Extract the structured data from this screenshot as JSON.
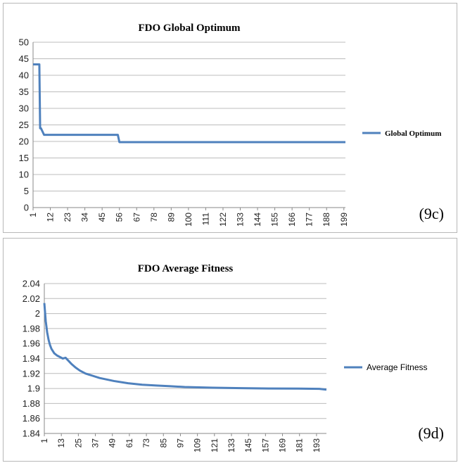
{
  "chart_data": [
    {
      "type": "line",
      "panel_label": "(9c)",
      "title": "FDO Global Optimum",
      "xlabel": "",
      "ylabel": "",
      "x_tick_labels": [
        "1",
        "12",
        "23",
        "34",
        "45",
        "56",
        "67",
        "78",
        "89",
        "100",
        "111",
        "122",
        "133",
        "144",
        "155",
        "166",
        "177",
        "188",
        "199"
      ],
      "xlim": [
        1,
        200
      ],
      "ylim": [
        0,
        50
      ],
      "y_ticks": [
        0,
        5,
        10,
        15,
        20,
        25,
        30,
        35,
        40,
        45,
        50
      ],
      "y_tick_labels": [
        "0",
        "5",
        "10",
        "15",
        "20",
        "25",
        "30",
        "35",
        "40",
        "45",
        "50"
      ],
      "grid": true,
      "legend_position": "right",
      "series": [
        {
          "name": "Global Optimum",
          "color": "#4f81bd",
          "x": [
            1,
            5,
            5.5,
            6,
            7,
            8,
            9,
            10,
            54,
            55,
            56,
            200
          ],
          "y": [
            43.3,
            43.3,
            24,
            24,
            23,
            22,
            22,
            22,
            22,
            22,
            19.8,
            19.8
          ]
        }
      ]
    },
    {
      "type": "line",
      "panel_label": "(9d)",
      "title": "FDO Average Fitness",
      "xlabel": "",
      "ylabel": "",
      "x_tick_labels": [
        "1",
        "13",
        "25",
        "37",
        "49",
        "61",
        "73",
        "85",
        "97",
        "109",
        "121",
        "133",
        "145",
        "157",
        "169",
        "181",
        "193"
      ],
      "xlim": [
        1,
        200
      ],
      "ylim": [
        1.84,
        2.04
      ],
      "y_ticks": [
        1.84,
        1.86,
        1.88,
        1.9,
        1.92,
        1.94,
        1.96,
        1.98,
        2,
        2.02,
        2.04
      ],
      "y_tick_labels": [
        "1.84",
        "1.86",
        "1.88",
        "1.9",
        "1.92",
        "1.94",
        "1.96",
        "1.98",
        "2",
        "2.02",
        "2.04"
      ],
      "grid": true,
      "legend_position": "right",
      "series": [
        {
          "name": "Average Fitness",
          "color": "#4f81bd",
          "x": [
            1,
            2,
            3,
            4,
            5,
            6,
            8,
            10,
            12,
            14,
            16,
            18,
            20,
            23,
            26,
            30,
            35,
            40,
            45,
            50,
            60,
            70,
            80,
            90,
            100,
            120,
            140,
            160,
            180,
            195,
            200
          ],
          "y": [
            2.014,
            1.99,
            1.975,
            1.965,
            1.958,
            1.953,
            1.947,
            1.944,
            1.942,
            1.94,
            1.941,
            1.937,
            1.933,
            1.928,
            1.924,
            1.92,
            1.917,
            1.914,
            1.912,
            1.91,
            1.907,
            1.905,
            1.904,
            1.903,
            1.902,
            1.901,
            1.9005,
            1.9,
            1.8998,
            1.8995,
            1.8985
          ]
        }
      ]
    }
  ]
}
